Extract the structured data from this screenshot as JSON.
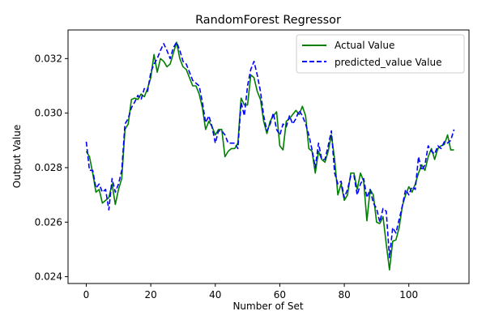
{
  "chart_data": {
    "type": "line",
    "title": "RandomForest Regressor",
    "xlabel": "Number of Set",
    "ylabel": "Output Value",
    "xlim": [
      -5.65,
      118.65
    ],
    "ylim": [
      0.02375,
      0.03305
    ],
    "xticks": [
      0,
      20,
      40,
      60,
      80,
      100
    ],
    "yticks": [
      0.024,
      0.026,
      0.028,
      0.03,
      0.032
    ],
    "ytick_labels": [
      "0.024",
      "0.026",
      "0.028",
      "0.030",
      "0.032"
    ],
    "grid": false,
    "legend_position": "upper right",
    "series": [
      {
        "name": "Actual Value",
        "color": "#008000",
        "style": "solid",
        "values": [
          0.0286,
          0.0284,
          0.0278,
          0.0271,
          0.0272,
          0.0267,
          0.0268,
          0.0269,
          0.0274,
          0.02665,
          0.0272,
          0.0276,
          0.0294,
          0.0296,
          0.0305,
          0.03055,
          0.0305,
          0.0307,
          0.0306,
          0.0309,
          0.0313,
          0.03215,
          0.0315,
          0.032,
          0.0319,
          0.0317,
          0.0318,
          0.0322,
          0.0326,
          0.032,
          0.0317,
          0.0316,
          0.0313,
          0.031,
          0.031,
          0.0307,
          0.0302,
          0.0294,
          0.0297,
          0.0295,
          0.0292,
          0.0294,
          0.0294,
          0.0284,
          0.0286,
          0.0287,
          0.0287,
          0.0289,
          0.03055,
          0.0303,
          0.0303,
          0.0314,
          0.0313,
          0.0308,
          0.0305,
          0.0297,
          0.02925,
          0.0297,
          0.0299,
          0.03005,
          0.0288,
          0.02865,
          0.0297,
          0.0298,
          0.02995,
          0.0301,
          0.02995,
          0.03025,
          0.0299,
          0.0287,
          0.0286,
          0.0278,
          0.0286,
          0.0283,
          0.0282,
          0.0286,
          0.0292,
          0.0283,
          0.027,
          0.0274,
          0.0268,
          0.027,
          0.0278,
          0.0278,
          0.0272,
          0.0278,
          0.0275,
          0.02605,
          0.0272,
          0.027,
          0.026,
          0.02595,
          0.0262,
          0.0252,
          0.02425,
          0.0253,
          0.02535,
          0.0258,
          0.0266,
          0.027,
          0.0273,
          0.0271,
          0.0274,
          0.0278,
          0.0281,
          0.0279,
          0.0284,
          0.0287,
          0.0283,
          0.0287,
          0.0288,
          0.02885,
          0.0292,
          0.02865,
          0.02865
        ]
      },
      {
        "name": "predicted_value Value",
        "color": "#0000ff",
        "style": "dashed",
        "values": [
          0.02895,
          0.0279,
          0.0279,
          0.02725,
          0.0274,
          0.0271,
          0.0272,
          0.02645,
          0.0276,
          0.0271,
          0.0274,
          0.0279,
          0.0296,
          0.0298,
          0.0302,
          0.0304,
          0.03065,
          0.0305,
          0.0309,
          0.0308,
          0.0315,
          0.0318,
          0.032,
          0.0323,
          0.03255,
          0.0323,
          0.032,
          0.0324,
          0.0326,
          0.0323,
          0.0319,
          0.0318,
          0.0315,
          0.0312,
          0.0311,
          0.031,
          0.0304,
          0.02965,
          0.0299,
          0.0295,
          0.0289,
          0.02935,
          0.02935,
          0.0292,
          0.0289,
          0.0289,
          0.0289,
          0.0287,
          0.0304,
          0.0299,
          0.031,
          0.0316,
          0.0319,
          0.0314,
          0.0308,
          0.0299,
          0.02935,
          0.0296,
          0.03,
          0.0294,
          0.0292,
          0.0296,
          0.0295,
          0.0299,
          0.0296,
          0.0298,
          0.0301,
          0.0299,
          0.0296,
          0.0292,
          0.02865,
          0.028,
          0.0289,
          0.0283,
          0.0283,
          0.0288,
          0.02935,
          0.0278,
          0.0274,
          0.0275,
          0.0269,
          0.0272,
          0.0277,
          0.0277,
          0.027,
          0.0274,
          0.0276,
          0.0269,
          0.0272,
          0.0267,
          0.0265,
          0.026,
          0.0265,
          0.0264,
          0.0247,
          0.0258,
          0.0256,
          0.0261,
          0.0266,
          0.0272,
          0.027,
          0.0273,
          0.0272,
          0.0284,
          0.0279,
          0.0281,
          0.0288,
          0.0286,
          0.0285,
          0.0288,
          0.0287,
          0.02895,
          0.0289,
          0.029,
          0.0294
        ]
      }
    ]
  }
}
